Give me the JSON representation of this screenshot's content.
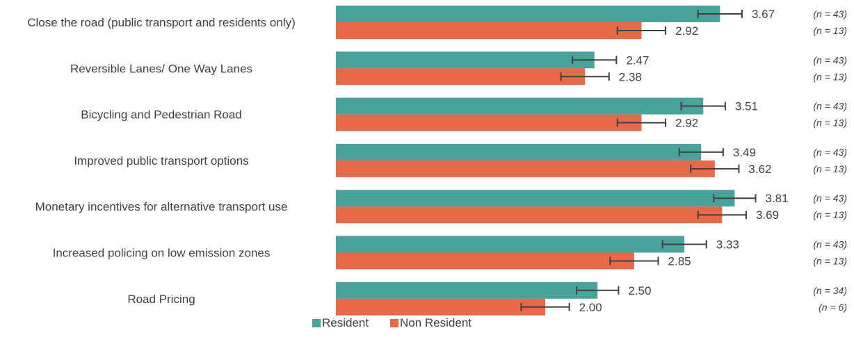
{
  "chart_data": {
    "type": "bar",
    "orientation": "horizontal",
    "categories": [
      "Close the road (public transport and residents only)",
      "Reversible Lanes/ One Way Lanes",
      "Bicycling and Pedestrian Road",
      "Improved public transport options",
      "Monetary incentives for alternative transport use",
      "Increased policing on low emission zones",
      "Road Pricing"
    ],
    "series": [
      {
        "name": "Resident",
        "color": "#4aa39a",
        "values": [
          3.67,
          2.47,
          3.51,
          3.49,
          3.81,
          3.33,
          2.5
        ],
        "value_labels": [
          "3.67",
          "2.47",
          "3.51",
          "3.49",
          "3.81",
          "3.33",
          "2.50"
        ],
        "error": [
          0.21,
          0.21,
          0.21,
          0.21,
          0.2,
          0.21,
          0.2
        ],
        "n_labels": [
          "(n = 43)",
          "(n = 43)",
          "(n = 43)",
          "(n = 43)",
          "(n = 43)",
          "(n = 43)",
          "(n = 34)"
        ]
      },
      {
        "name": "Non Resident",
        "color": "#e8694a",
        "values": [
          2.92,
          2.38,
          2.92,
          3.62,
          3.69,
          2.85,
          2.0
        ],
        "value_labels": [
          "2.92",
          "2.38",
          "2.92",
          "3.62",
          "3.69",
          "2.85",
          "2.00"
        ],
        "error": [
          0.23,
          0.23,
          0.23,
          0.23,
          0.23,
          0.23,
          0.23
        ],
        "n_labels": [
          "(n = 13)",
          "(n = 13)",
          "(n = 13)",
          "(n = 13)",
          "(n = 13)",
          "(n = 13)",
          "(n = 6)"
        ]
      }
    ],
    "xlim": [
      0,
      5
    ],
    "legend_position": "bottom",
    "grid": false,
    "title": "",
    "xlabel": "",
    "ylabel": ""
  }
}
